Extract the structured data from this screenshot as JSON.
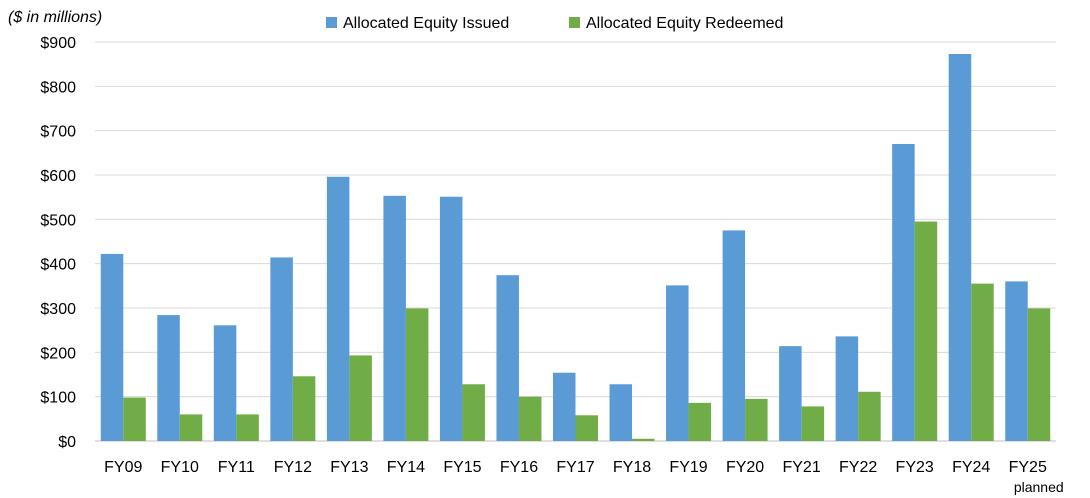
{
  "chart_data": {
    "type": "bar",
    "title": "",
    "unit_label": "($ in millions)",
    "xlabel": "",
    "ylabel": "",
    "ylim": [
      0,
      900
    ],
    "ytick_step": 100,
    "ytick_labels": [
      "$0",
      "$100",
      "$200",
      "$300",
      "$400",
      "$500",
      "$600",
      "$700",
      "$800",
      "$900"
    ],
    "grid": true,
    "legend_position": "top-center",
    "categories": [
      "FY09",
      "FY10",
      "FY11",
      "FY12",
      "FY13",
      "FY14",
      "FY15",
      "FY16",
      "FY17",
      "FY18",
      "FY19",
      "FY20",
      "FY21",
      "FY22",
      "FY23",
      "FY24",
      "FY25"
    ],
    "category_sublabels": {
      "FY25": "planned"
    },
    "series": [
      {
        "name": "Allocated Equity Issued",
        "color": "#5b9bd5",
        "values": [
          422,
          284,
          261,
          414,
          596,
          553,
          551,
          374,
          154,
          128,
          351,
          475,
          214,
          236,
          670,
          873,
          360
        ]
      },
      {
        "name": "Allocated Equity Redeemed",
        "color": "#70ad47",
        "values": [
          98,
          60,
          60,
          146,
          193,
          299,
          128,
          100,
          58,
          5,
          86,
          95,
          78,
          111,
          495,
          355,
          299
        ]
      }
    ]
  }
}
